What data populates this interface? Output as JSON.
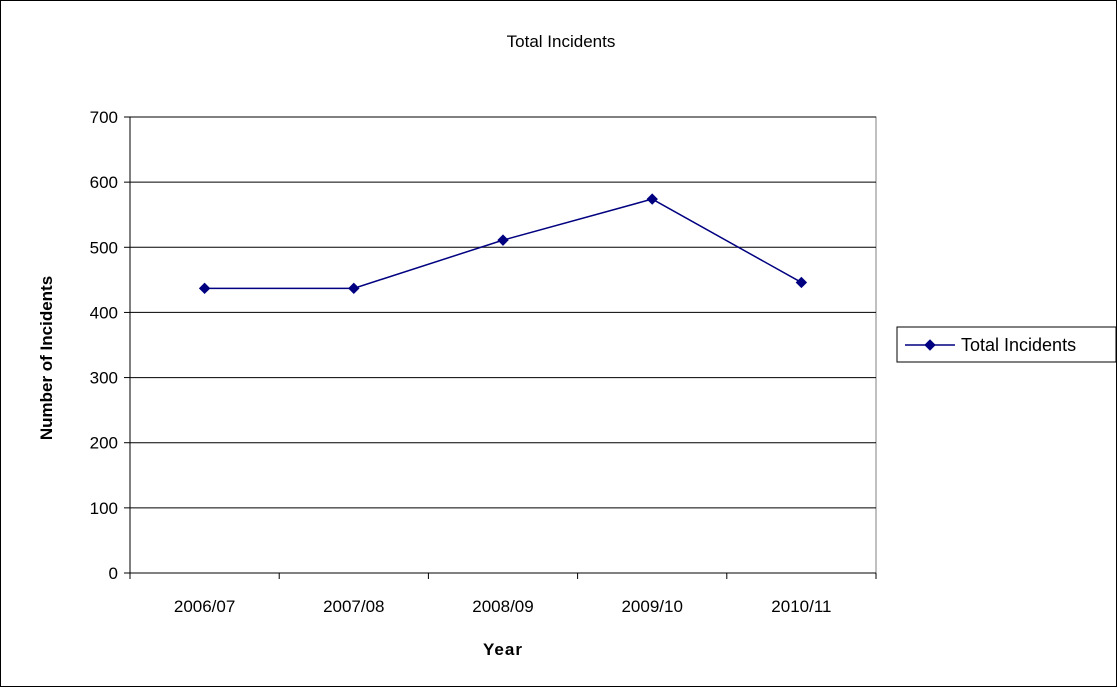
{
  "chart_data": {
    "type": "line",
    "title": "Total Incidents",
    "xlabel": "Year",
    "ylabel": "Number of Incidents",
    "categories": [
      "2006/07",
      "2007/08",
      "2008/09",
      "2009/10",
      "2010/11"
    ],
    "series": [
      {
        "name": "Total Incidents",
        "values": [
          437,
          437,
          511,
          574,
          446
        ],
        "color": "#000080"
      }
    ],
    "ylim": [
      0,
      700
    ],
    "yticks": [
      0,
      100,
      200,
      300,
      400,
      500,
      600,
      700
    ],
    "grid": true,
    "legend": "right",
    "marker": "diamond"
  }
}
